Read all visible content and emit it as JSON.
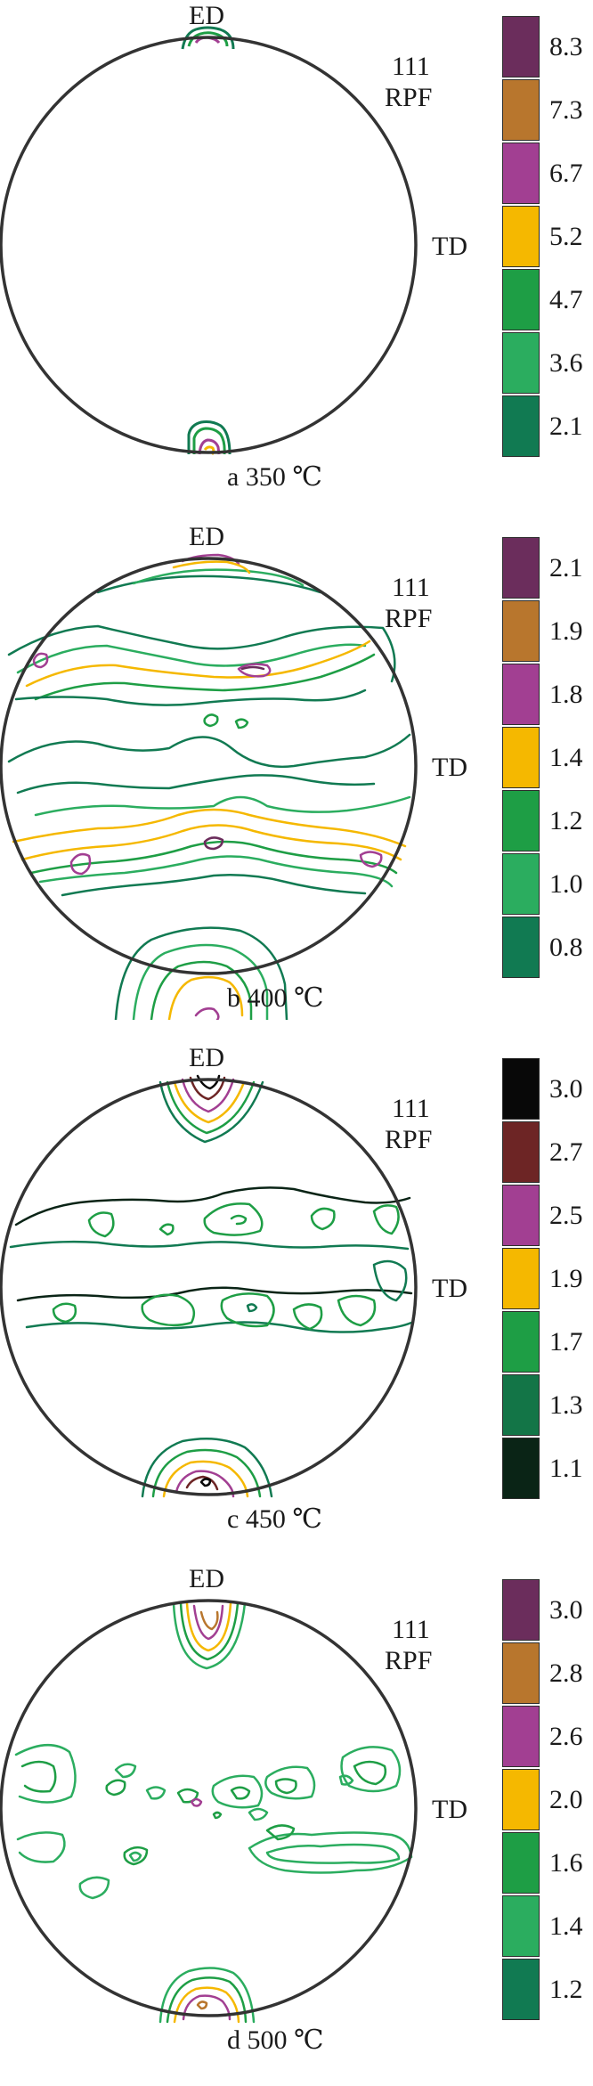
{
  "panels": [
    {
      "id": "a",
      "ed": "ED",
      "pole_figure": "111",
      "rpf": "RPF",
      "td": "TD",
      "caption": "a 350 ℃",
      "scale": [
        {
          "value": "8.3",
          "color": "#6b2d5c"
        },
        {
          "value": "7.3",
          "color": "#b8762d"
        },
        {
          "value": "6.7",
          "color": "#a23f92"
        },
        {
          "value": "5.2",
          "color": "#f5b800"
        },
        {
          "value": "4.7",
          "color": "#1e9e45"
        },
        {
          "value": "3.6",
          "color": "#2bad5f"
        },
        {
          "value": "2.1",
          "color": "#117a52"
        }
      ]
    },
    {
      "id": "b",
      "ed": "ED",
      "pole_figure": "111",
      "rpf": "RPF",
      "td": "TD",
      "caption": "b 400 ℃",
      "scale": [
        {
          "value": "2.1",
          "color": "#6b2d5c"
        },
        {
          "value": "1.9",
          "color": "#b8762d"
        },
        {
          "value": "1.8",
          "color": "#a23f92"
        },
        {
          "value": "1.4",
          "color": "#f5b800"
        },
        {
          "value": "1.2",
          "color": "#1e9e45"
        },
        {
          "value": "1.0",
          "color": "#2bad5f"
        },
        {
          "value": "0.8",
          "color": "#117a52"
        }
      ]
    },
    {
      "id": "c",
      "ed": "ED",
      "pole_figure": "111",
      "rpf": "RPF",
      "td": "TD",
      "caption": "c 450 ℃",
      "scale": [
        {
          "value": "3.0",
          "color": "#080808"
        },
        {
          "value": "2.7",
          "color": "#6d2525"
        },
        {
          "value": "2.5",
          "color": "#a23f92"
        },
        {
          "value": "1.9",
          "color": "#f5b800"
        },
        {
          "value": "1.7",
          "color": "#1e9e45"
        },
        {
          "value": "1.3",
          "color": "#137547"
        },
        {
          "value": "1.1",
          "color": "#0a2416"
        }
      ]
    },
    {
      "id": "d",
      "ed": "ED",
      "pole_figure": "111",
      "rpf": "RPF",
      "td": "TD",
      "caption": "d 500 ℃",
      "scale": [
        {
          "value": "3.0",
          "color": "#6b2d5c"
        },
        {
          "value": "2.8",
          "color": "#b8762d"
        },
        {
          "value": "2.6",
          "color": "#a23f92"
        },
        {
          "value": "2.0",
          "color": "#f5b800"
        },
        {
          "value": "1.6",
          "color": "#1e9e45"
        },
        {
          "value": "1.4",
          "color": "#2bad5f"
        },
        {
          "value": "1.2",
          "color": "#117a52"
        }
      ]
    }
  ]
}
